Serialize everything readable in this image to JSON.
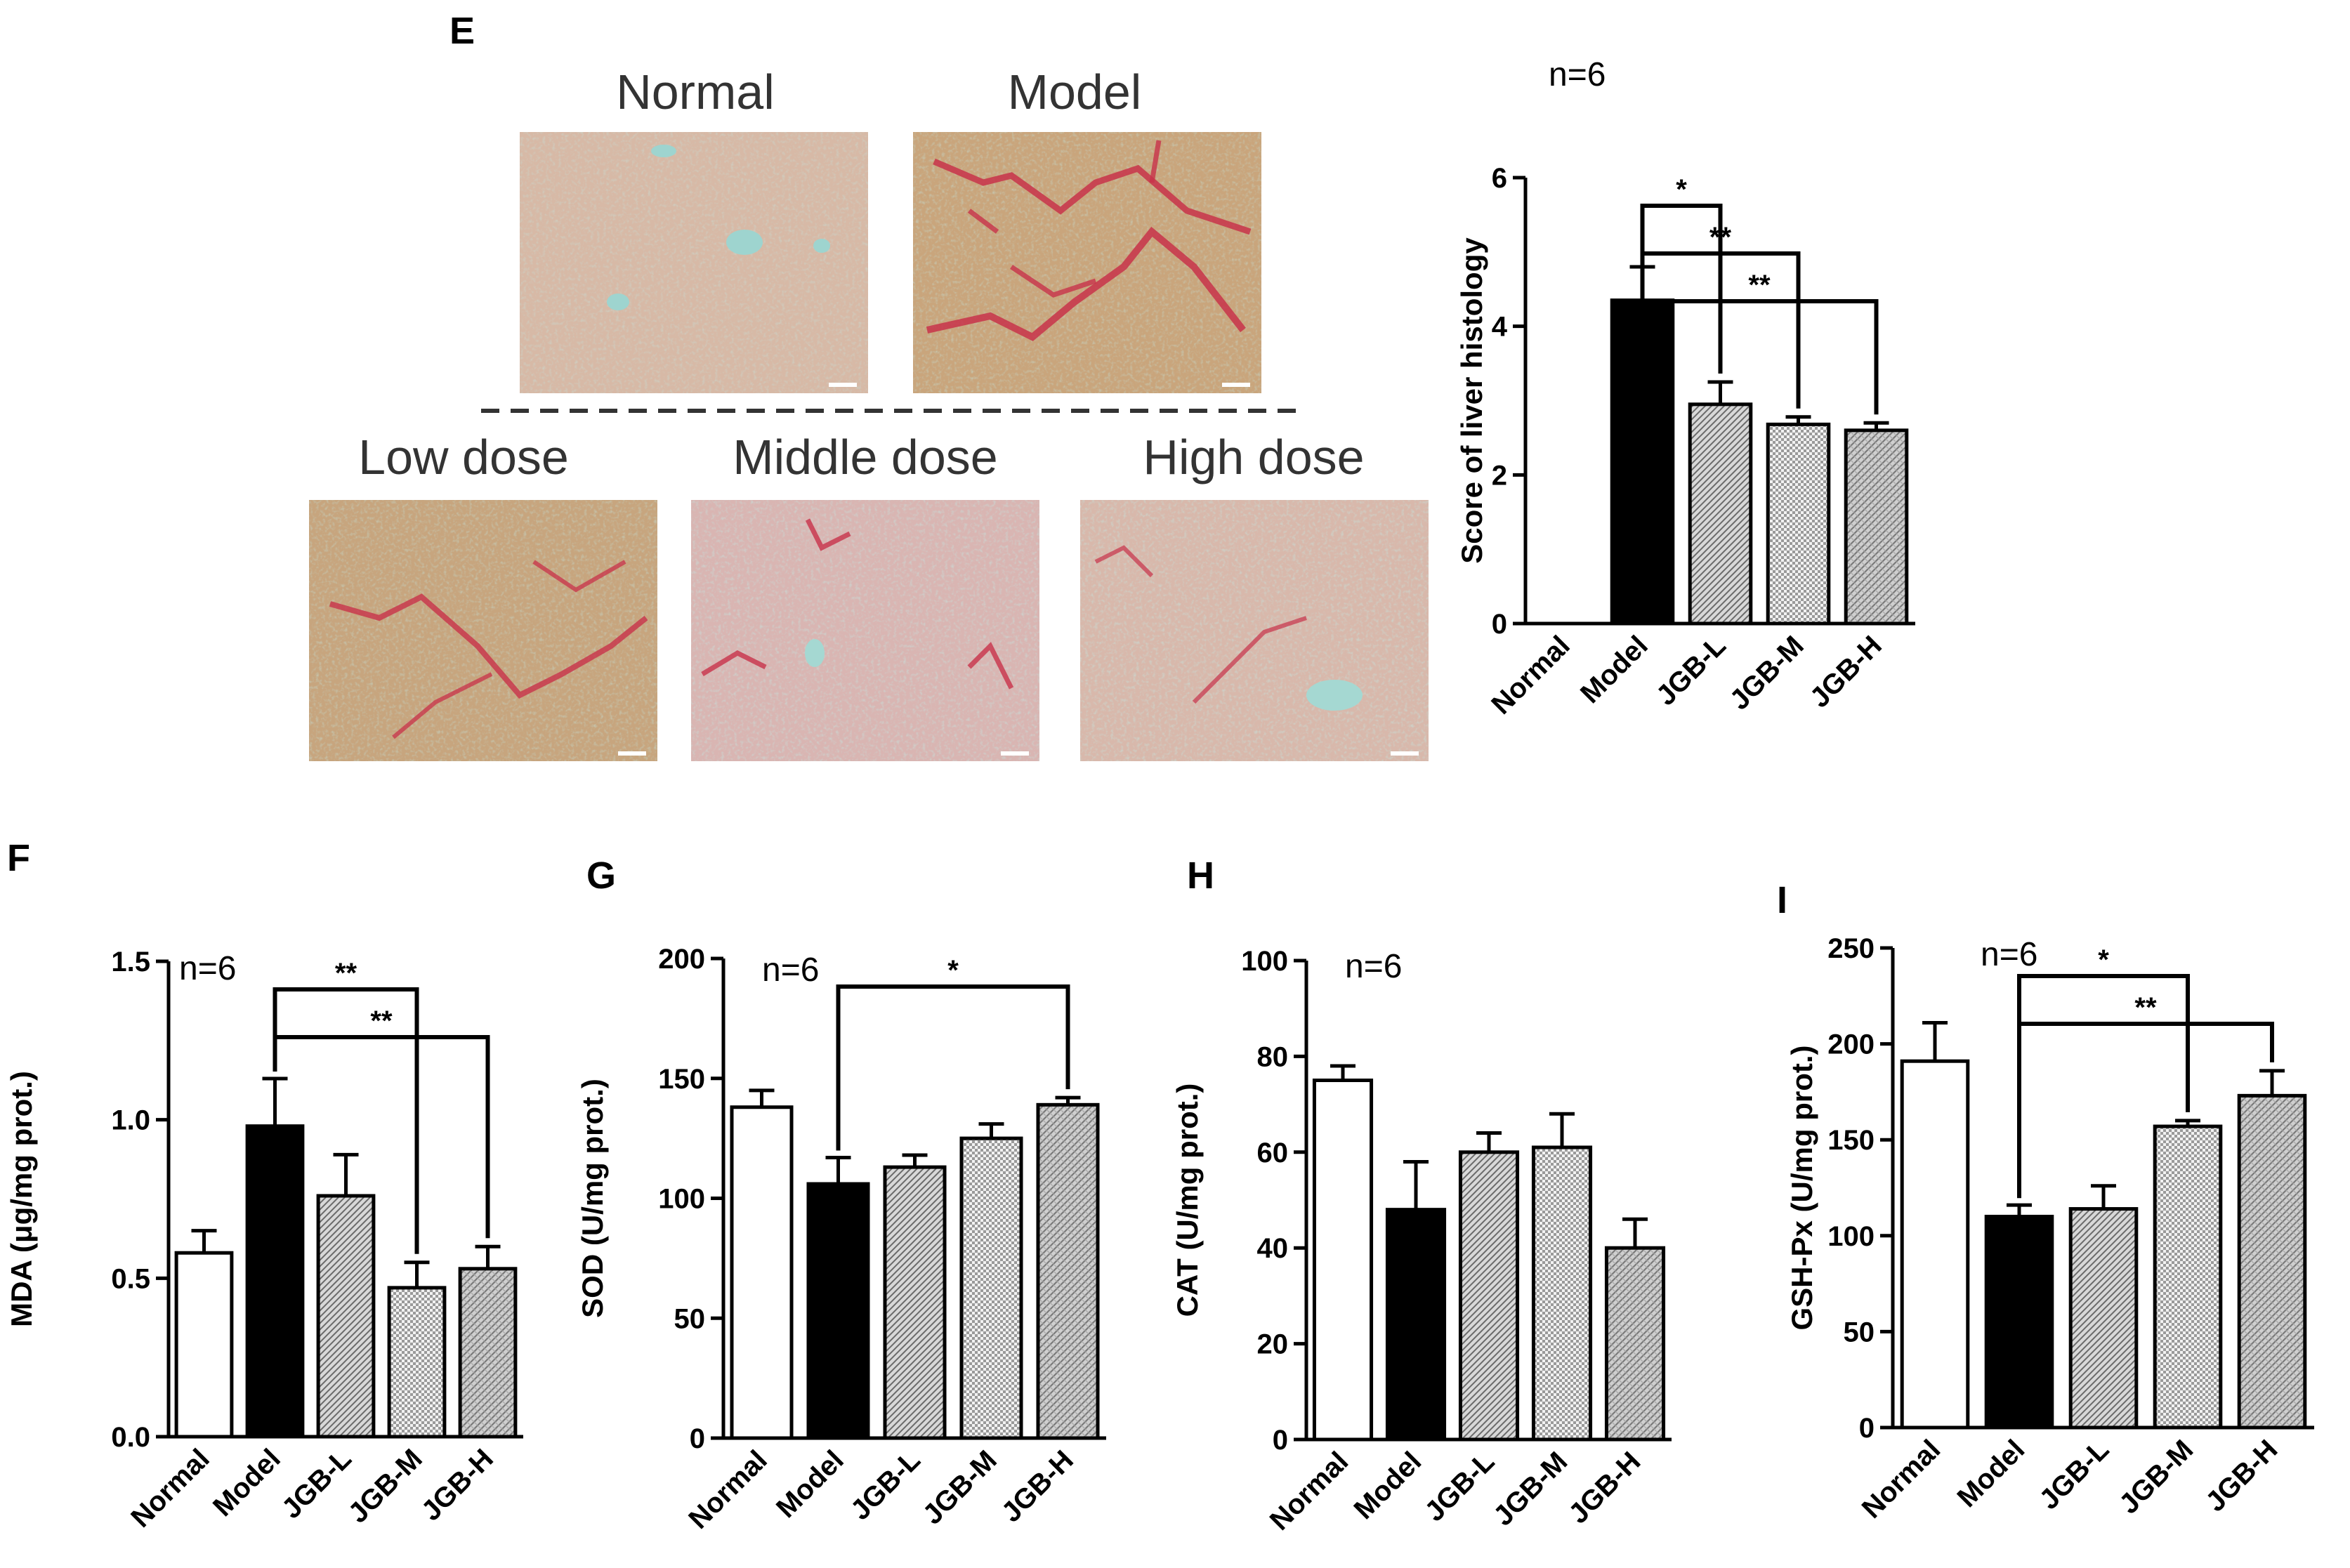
{
  "figure": {
    "panel_e": {
      "letter": "E",
      "micrographs": [
        {
          "label": "Normal",
          "key": "normal"
        },
        {
          "label": "Model",
          "key": "model"
        },
        {
          "label": "Low dose",
          "key": "low"
        },
        {
          "label": "Middle dose",
          "key": "middle"
        },
        {
          "label": "High dose",
          "key": "high"
        }
      ]
    },
    "panel_letters": [
      "F",
      "G",
      "H",
      "I"
    ]
  },
  "colors": {
    "bar_normal": "#ffffff",
    "bar_model": "#000000",
    "bar_hatched": "#d0d0d0",
    "stain_red": "#c8324a",
    "tissue_tan": "#c8a67e",
    "tissue_cyan": "#8fc9c0"
  },
  "chart_data": [
    {
      "panel": "E",
      "type": "bar",
      "n_label": "n=6",
      "categories": [
        "Normal",
        "Model",
        "JGB-L",
        "JGB-M",
        "JGB-H"
      ],
      "values": [
        0,
        4.35,
        2.95,
        2.68,
        2.6
      ],
      "errors": [
        0,
        0.45,
        0.3,
        0.1,
        0.1
      ],
      "ylabel": "Score of liver histology",
      "ylim": [
        0,
        6
      ],
      "yticks": [
        0,
        2,
        4,
        6
      ],
      "ytick_labels": [
        "0",
        "2",
        "4",
        "6"
      ],
      "significance": [
        {
          "from": 1,
          "to": 2,
          "label": "*"
        },
        {
          "from": 1,
          "to": 3,
          "label": "**"
        },
        {
          "from": 1,
          "to": 4,
          "label": "**"
        }
      ]
    },
    {
      "panel": "F",
      "type": "bar",
      "n_label": "n=6",
      "categories": [
        "Normal",
        "Model",
        "JGB-L",
        "JGB-M",
        "JGB-H"
      ],
      "values": [
        0.58,
        0.98,
        0.76,
        0.47,
        0.53
      ],
      "errors": [
        0.07,
        0.15,
        0.13,
        0.08,
        0.07
      ],
      "ylabel": "MDA (μg/mg prot.)",
      "ylim": [
        0,
        1.5
      ],
      "yticks": [
        0,
        0.5,
        1.0,
        1.5
      ],
      "ytick_labels": [
        "0.0",
        "0.5",
        "1.0",
        "1.5"
      ],
      "significance": [
        {
          "from": 1,
          "to": 3,
          "label": "**"
        },
        {
          "from": 1,
          "to": 4,
          "label": "**"
        }
      ]
    },
    {
      "panel": "G",
      "type": "bar",
      "n_label": "n=6",
      "categories": [
        "Normal",
        "Model",
        "JGB-L",
        "JGB-M",
        "JGB-H"
      ],
      "values": [
        138,
        106,
        113,
        125,
        139
      ],
      "errors": [
        7,
        11,
        5,
        6,
        3
      ],
      "ylabel": "SOD (U/mg prot.)",
      "ylim": [
        0,
        200
      ],
      "yticks": [
        0,
        50,
        100,
        150,
        200
      ],
      "ytick_labels": [
        "0",
        "50",
        "100",
        "150",
        "200"
      ],
      "significance": [
        {
          "from": 1,
          "to": 4,
          "label": "*"
        }
      ]
    },
    {
      "panel": "H",
      "type": "bar",
      "n_label": "n=6",
      "categories": [
        "Normal",
        "Model",
        "JGB-L",
        "JGB-M",
        "JGB-H"
      ],
      "values": [
        75,
        48,
        60,
        61,
        40
      ],
      "errors": [
        3,
        10,
        4,
        7,
        6
      ],
      "ylabel": "CAT (U/mg prot.)",
      "ylim": [
        0,
        100
      ],
      "yticks": [
        0,
        20,
        40,
        60,
        80,
        100
      ],
      "ytick_labels": [
        "0",
        "20",
        "40",
        "60",
        "80",
        "100"
      ],
      "significance": []
    },
    {
      "panel": "I",
      "type": "bar",
      "n_label": "n=6",
      "categories": [
        "Normal",
        "Model",
        "JGB-L",
        "JGB-M",
        "JGB-H"
      ],
      "values": [
        191,
        110,
        114,
        157,
        173
      ],
      "errors": [
        20,
        6,
        12,
        3,
        13
      ],
      "ylabel": "GSH-Px (U/mg prot.)",
      "ylim": [
        0,
        250
      ],
      "yticks": [
        0,
        50,
        100,
        150,
        200,
        250
      ],
      "ytick_labels": [
        "0",
        "50",
        "100",
        "150",
        "200",
        "250"
      ],
      "significance": [
        {
          "from": 1,
          "to": 3,
          "label": "*"
        },
        {
          "from": 1,
          "to": 4,
          "label": "**"
        }
      ]
    }
  ]
}
